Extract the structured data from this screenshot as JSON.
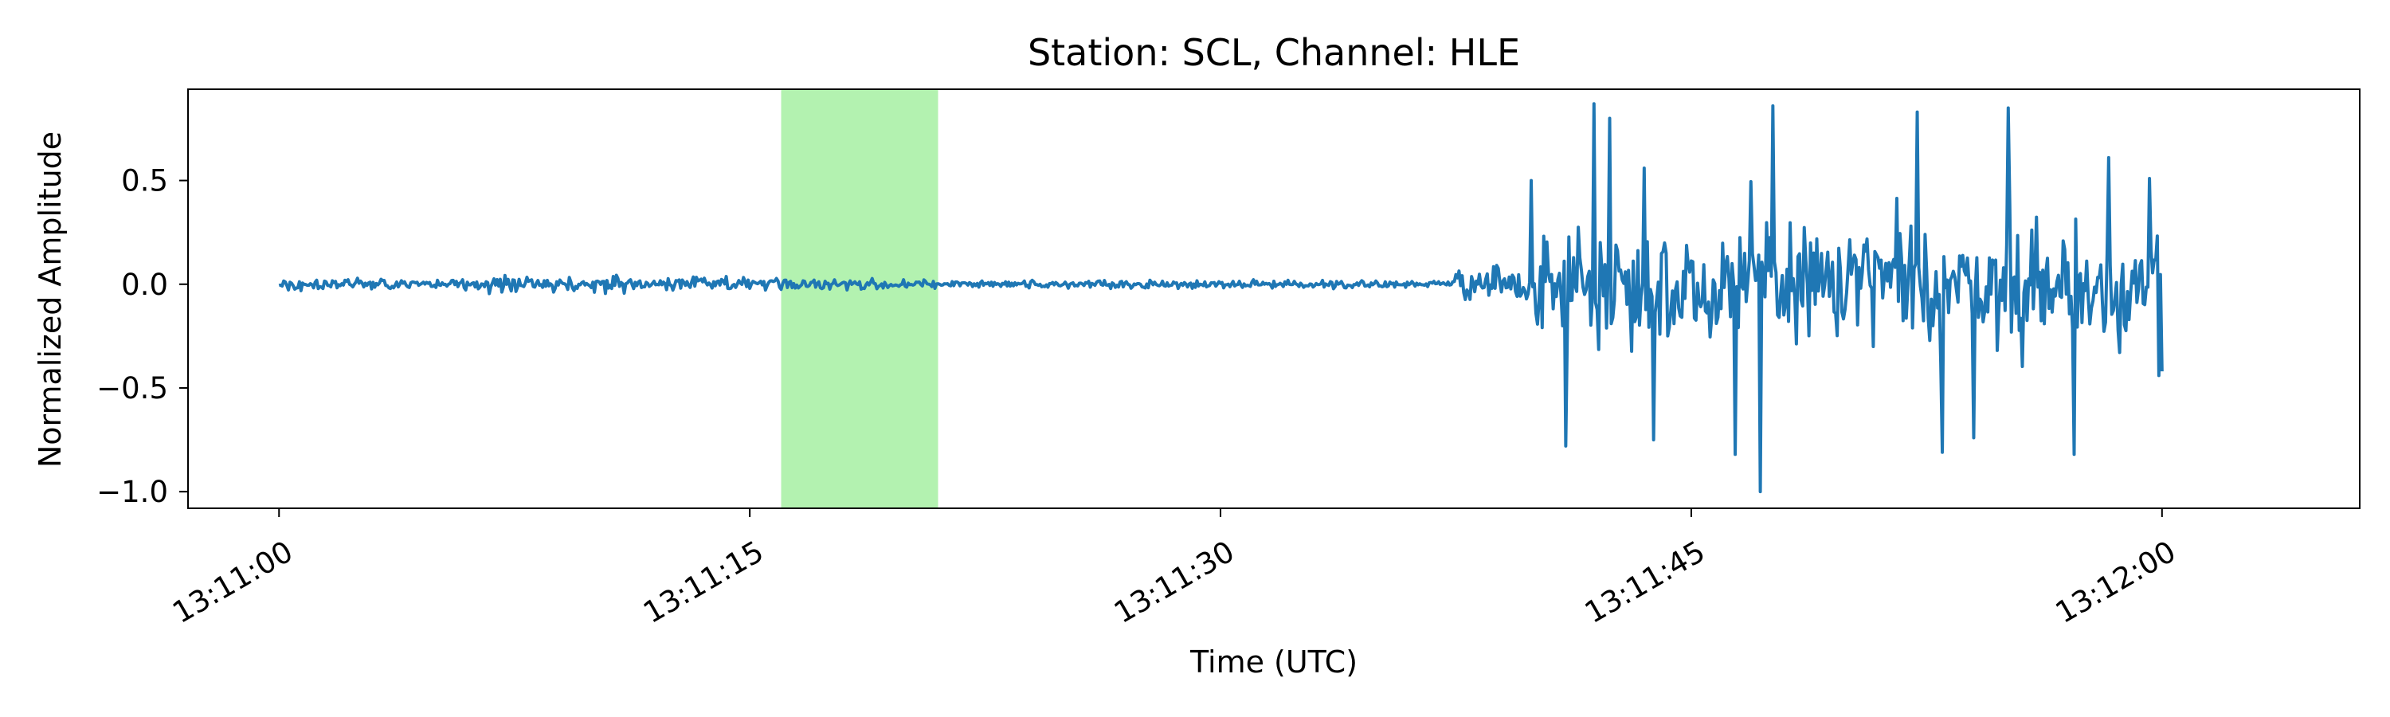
{
  "chart_data": {
    "type": "line",
    "title": "Station: SCL, Channel: HLE",
    "xlabel": "Time (UTC)",
    "ylabel": "Normalized Amplitude",
    "xlim_seconds": [
      -2.9,
      66.3
    ],
    "ylim": [
      -1.08,
      0.94
    ],
    "grid": false,
    "x_tick_labels": [
      "13:11:00",
      "13:11:15",
      "13:11:30",
      "13:11:45",
      "13:12:00"
    ],
    "x_ticks_seconds": [
      0,
      15,
      30,
      45,
      60
    ],
    "y_tick_labels": [
      "0.5",
      "0.0",
      "−0.5",
      "−1.0"
    ],
    "y_ticks": [
      0.5,
      0.0,
      -0.5,
      -1.0
    ],
    "highlight": {
      "x_start_seconds": 16.0,
      "x_end_seconds": 21.0,
      "color": "#b3f2b0"
    },
    "series": [
      {
        "color": "#1f77b4",
        "start_seconds": 0,
        "end_seconds": 60,
        "sample_interval_seconds": 0.05,
        "segments": [
          {
            "start": 0,
            "end": 6,
            "amplitude": 0.035
          },
          {
            "start": 6,
            "end": 11,
            "amplitude": 0.055
          },
          {
            "start": 11,
            "end": 15,
            "amplitude": 0.05
          },
          {
            "start": 15,
            "end": 21,
            "amplitude": 0.035
          },
          {
            "start": 21,
            "end": 37.5,
            "amplitude": 0.025
          },
          {
            "start": 37.5,
            "end": 40,
            "amplitude": 0.12
          },
          {
            "start": 40,
            "end": 42,
            "amplitude": 0.35
          },
          {
            "start": 42,
            "end": 60,
            "amplitude": 0.38
          }
        ],
        "peaks": [
          {
            "x": 39.9,
            "y": 0.5
          },
          {
            "x": 41.9,
            "y": 0.87
          },
          {
            "x": 42.4,
            "y": 0.8
          },
          {
            "x": 43.5,
            "y": 0.56
          },
          {
            "x": 47.6,
            "y": 0.86
          },
          {
            "x": 47.2,
            "y": -1.0
          },
          {
            "x": 52.2,
            "y": 0.83
          },
          {
            "x": 55.1,
            "y": 0.85
          },
          {
            "x": 58.3,
            "y": 0.61
          },
          {
            "x": 59.6,
            "y": 0.51
          },
          {
            "x": 41.0,
            "y": -0.78
          },
          {
            "x": 43.8,
            "y": -0.75
          },
          {
            "x": 46.4,
            "y": -0.82
          },
          {
            "x": 53.0,
            "y": -0.81
          },
          {
            "x": 54.0,
            "y": -0.74
          },
          {
            "x": 57.2,
            "y": -0.82
          },
          {
            "x": 59.9,
            "y": -0.44
          },
          {
            "x": 60.0,
            "y": -0.42
          }
        ]
      }
    ]
  }
}
